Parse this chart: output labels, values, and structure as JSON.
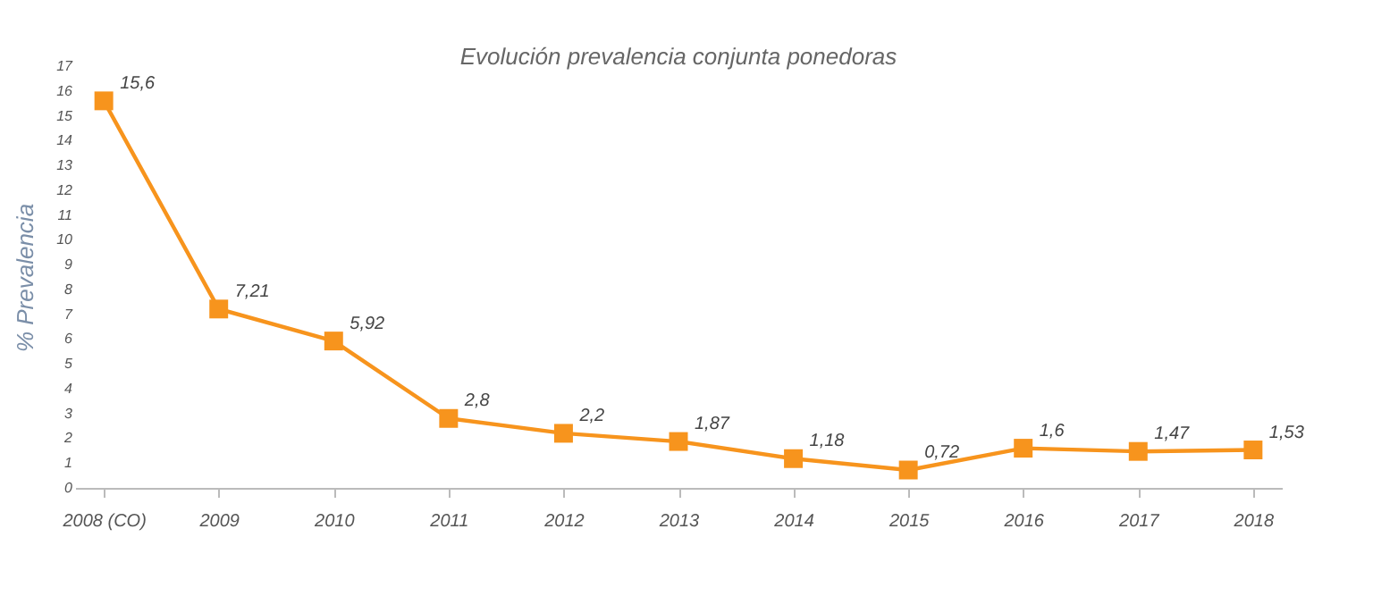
{
  "chart_data": {
    "type": "line",
    "title": "Evolución prevalencia conjunta ponedoras",
    "ylabel": "% Prevalencia",
    "categories": [
      "2008 (CO)",
      "2009",
      "2010",
      "2011",
      "2012",
      "2013",
      "2014",
      "2015",
      "2016",
      "2017",
      "2018"
    ],
    "series": [
      {
        "color": "#f7941d",
        "values": [
          15.6,
          7.21,
          5.92,
          2.8,
          2.2,
          1.87,
          1.18,
          0.72,
          1.6,
          1.47,
          1.53
        ],
        "value_labels": [
          "15,6",
          "7,21",
          "5,92",
          "2,8",
          "2,2",
          "1,87",
          "1,18",
          "0,72",
          "1,6",
          "1,47",
          "1,53"
        ]
      }
    ],
    "ylim": [
      0,
      17
    ],
    "yticks": [
      0,
      1,
      2,
      3,
      4,
      5,
      6,
      7,
      8,
      9,
      10,
      11,
      12,
      13,
      14,
      15,
      16,
      17
    ],
    "grid": false,
    "marker": "square",
    "line_style": "solid"
  }
}
